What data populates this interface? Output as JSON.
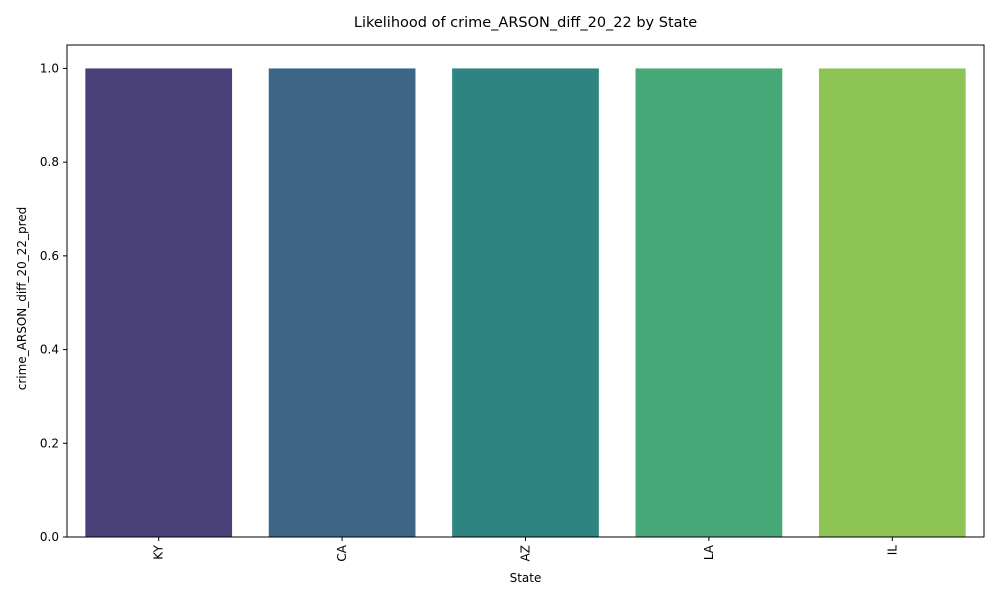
{
  "chart_data": {
    "type": "bar",
    "title": "Likelihood of crime_ARSON_diff_20_22 by State",
    "xlabel": "State",
    "ylabel": "crime_ARSON_diff_20_22_pred",
    "categories": [
      "KY",
      "CA",
      "AZ",
      "LA",
      "IL"
    ],
    "values": [
      1.0,
      1.0,
      1.0,
      1.0,
      1.0
    ],
    "colors": [
      "#4a417a",
      "#3d6686",
      "#2e8480",
      "#47a978",
      "#8dc455"
    ],
    "ylim": [
      0,
      1.05
    ],
    "yticks": [
      0.0,
      0.2,
      0.4,
      0.6,
      0.8,
      1.0
    ],
    "ytick_labels": [
      "0.0",
      "0.2",
      "0.4",
      "0.6",
      "0.8",
      "1.0"
    ],
    "grid": false,
    "legend": "none"
  }
}
